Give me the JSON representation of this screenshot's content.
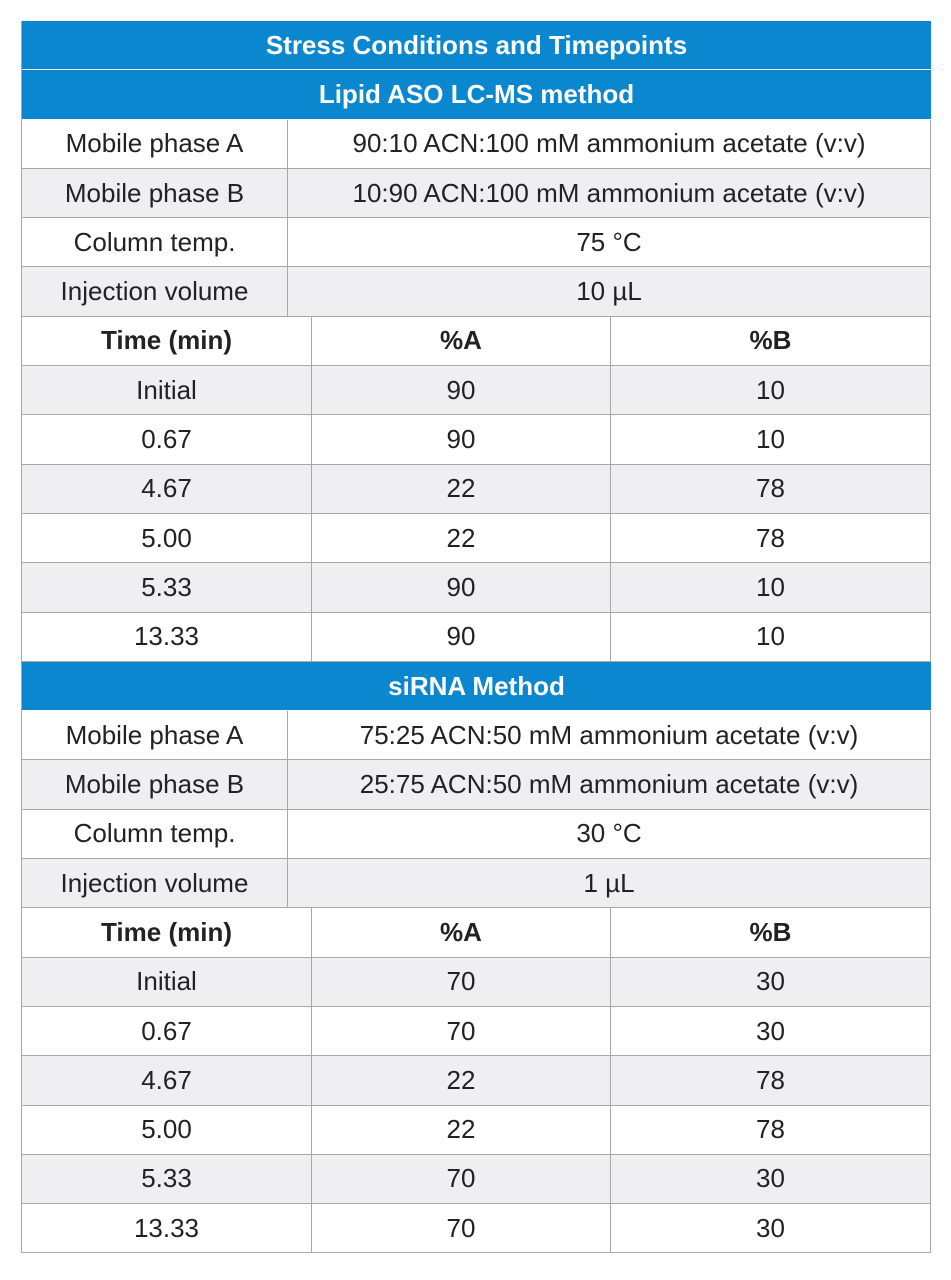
{
  "title": "Stress Conditions and Timepoints",
  "sections": [
    {
      "name": "Lipid ASO LC-MS method",
      "params": [
        {
          "label": "Mobile phase A",
          "value": "90:10 ACN:100 mM ammonium acetate (v:v)"
        },
        {
          "label": "Mobile phase B",
          "value": "10:90 ACN:100 mM ammonium acetate (v:v)"
        },
        {
          "label": "Column temp.",
          "value": "75 °C"
        },
        {
          "label": "Injection volume",
          "value": "10 µL"
        }
      ],
      "gradient_headers": [
        "Time (min)",
        "%A",
        "%B"
      ],
      "gradient": [
        [
          "Initial",
          "90",
          "10"
        ],
        [
          "0.67",
          "90",
          "10"
        ],
        [
          "4.67",
          "22",
          "78"
        ],
        [
          "5.00",
          "22",
          "78"
        ],
        [
          "5.33",
          "90",
          "10"
        ],
        [
          "13.33",
          "90",
          "10"
        ]
      ]
    },
    {
      "name": "siRNA Method",
      "params": [
        {
          "label": "Mobile phase A",
          "value": "75:25 ACN:50 mM ammonium acetate (v:v)"
        },
        {
          "label": "Mobile phase B",
          "value": "25:75 ACN:50 mM ammonium acetate (v:v)"
        },
        {
          "label": "Column temp.",
          "value": "30 °C"
        },
        {
          "label": "Injection volume",
          "value": "1 µL"
        }
      ],
      "gradient_headers": [
        "Time (min)",
        "%A",
        "%B"
      ],
      "gradient": [
        [
          "Initial",
          "70",
          "30"
        ],
        [
          "0.67",
          "70",
          "30"
        ],
        [
          "4.67",
          "22",
          "78"
        ],
        [
          "5.00",
          "22",
          "78"
        ],
        [
          "5.33",
          "70",
          "30"
        ],
        [
          "13.33",
          "70",
          "30"
        ]
      ]
    }
  ],
  "colors": {
    "header_blue": "#0a87cf",
    "alt_row": "#efeff1",
    "border": "#a8a8a8"
  }
}
